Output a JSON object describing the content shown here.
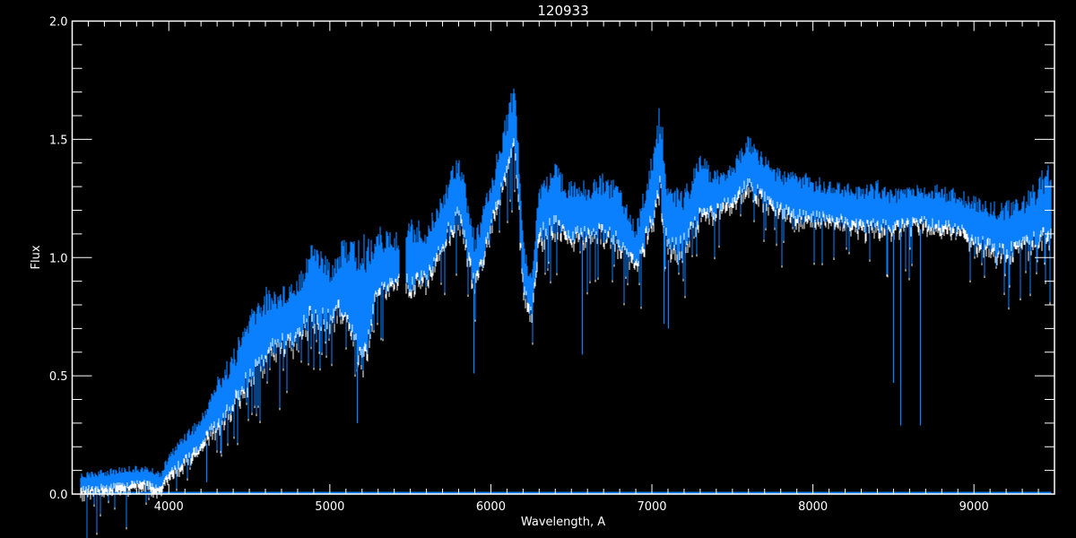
{
  "chart_data": {
    "type": "line",
    "title": "120933",
    "xlabel": "Wavelength, A",
    "ylabel": "Flux",
    "xlim": [
      3400,
      9500
    ],
    "ylim": [
      0.0,
      2.0
    ],
    "xticks": [
      4000,
      5000,
      6000,
      7000,
      8000,
      9000
    ],
    "xtick_labels": [
      "4000",
      "5000",
      "6000",
      "7000",
      "8000",
      "9000"
    ],
    "yticks": [
      0.0,
      0.5,
      1.0,
      1.5,
      2.0
    ],
    "ytick_labels": [
      "0.0",
      "0.5",
      "1.0",
      "1.5",
      "2.0"
    ],
    "grid": false,
    "colors": {
      "background": "#000000",
      "axes": "#ffffff",
      "spectrum": "#0a80ff",
      "secondary": "#ffffff"
    },
    "spectrum_envelope": {
      "wavelength": [
        3450,
        3550,
        3650,
        3750,
        3850,
        3950,
        4000,
        4100,
        4200,
        4300,
        4400,
        4500,
        4600,
        4700,
        4800,
        4900,
        5000,
        5100,
        5200,
        5300,
        5400,
        5500,
        5600,
        5700,
        5800,
        5900,
        6000,
        6100,
        6150,
        6200,
        6250,
        6300,
        6400,
        6500,
        6600,
        6700,
        6800,
        6900,
        7000,
        7050,
        7100,
        7200,
        7300,
        7400,
        7500,
        7600,
        7700,
        7800,
        7900,
        8000,
        8100,
        8200,
        8300,
        8400,
        8500,
        8600,
        8700,
        8800,
        8900,
        9000,
        9100,
        9200,
        9300,
        9400,
        9480
      ],
      "flux_max": [
        0.09,
        0.1,
        0.11,
        0.12,
        0.12,
        0.1,
        0.17,
        0.27,
        0.33,
        0.5,
        0.61,
        0.78,
        0.88,
        0.88,
        0.95,
        1.1,
        0.99,
        1.1,
        1.1,
        1.14,
        1.1,
        1.18,
        1.14,
        1.29,
        1.48,
        1.1,
        1.33,
        1.63,
        1.77,
        1.1,
        0.95,
        1.33,
        1.4,
        1.33,
        1.33,
        1.37,
        1.33,
        1.14,
        1.44,
        1.67,
        1.33,
        1.29,
        1.44,
        1.37,
        1.4,
        1.52,
        1.44,
        1.37,
        1.37,
        1.35,
        1.33,
        1.33,
        1.31,
        1.33,
        1.29,
        1.31,
        1.31,
        1.31,
        1.29,
        1.27,
        1.25,
        1.24,
        1.27,
        1.33,
        1.48
      ],
      "flux_min": [
        0.01,
        0.02,
        0.02,
        0.03,
        0.04,
        0.01,
        0.08,
        0.12,
        0.19,
        0.27,
        0.34,
        0.46,
        0.53,
        0.61,
        0.61,
        0.72,
        0.69,
        0.76,
        0.46,
        0.8,
        0.87,
        0.84,
        0.87,
        1.03,
        1.14,
        0.84,
        1.1,
        1.33,
        1.44,
        0.84,
        0.72,
        1.06,
        1.1,
        1.06,
        1.06,
        1.06,
        1.03,
        0.95,
        1.1,
        1.22,
        0.99,
        1.03,
        1.14,
        1.18,
        1.22,
        1.29,
        1.22,
        1.18,
        1.14,
        1.14,
        1.14,
        1.12,
        1.1,
        1.1,
        1.1,
        1.12,
        1.12,
        1.1,
        1.1,
        1.05,
        1.01,
        0.99,
        1.01,
        1.04,
        1.02
      ]
    },
    "absorption_lines": [
      {
        "wavelength": 4230,
        "flux": 0.05
      },
      {
        "wavelength": 5170,
        "flux": 0.3
      },
      {
        "wavelength": 5890,
        "flux": 0.51
      },
      {
        "wavelength": 6563,
        "flux": 0.59
      },
      {
        "wavelength": 7070,
        "flux": 0.72
      },
      {
        "wavelength": 7100,
        "flux": 0.7
      },
      {
        "wavelength": 8498,
        "flux": 0.47
      },
      {
        "wavelength": 8542,
        "flux": 0.29
      },
      {
        "wavelength": 8662,
        "flux": 0.29
      }
    ],
    "gaps": [
      [
        5430,
        5470
      ]
    ],
    "zero_line": {
      "from": 3480,
      "to": 9480,
      "flux": 0.0
    }
  }
}
